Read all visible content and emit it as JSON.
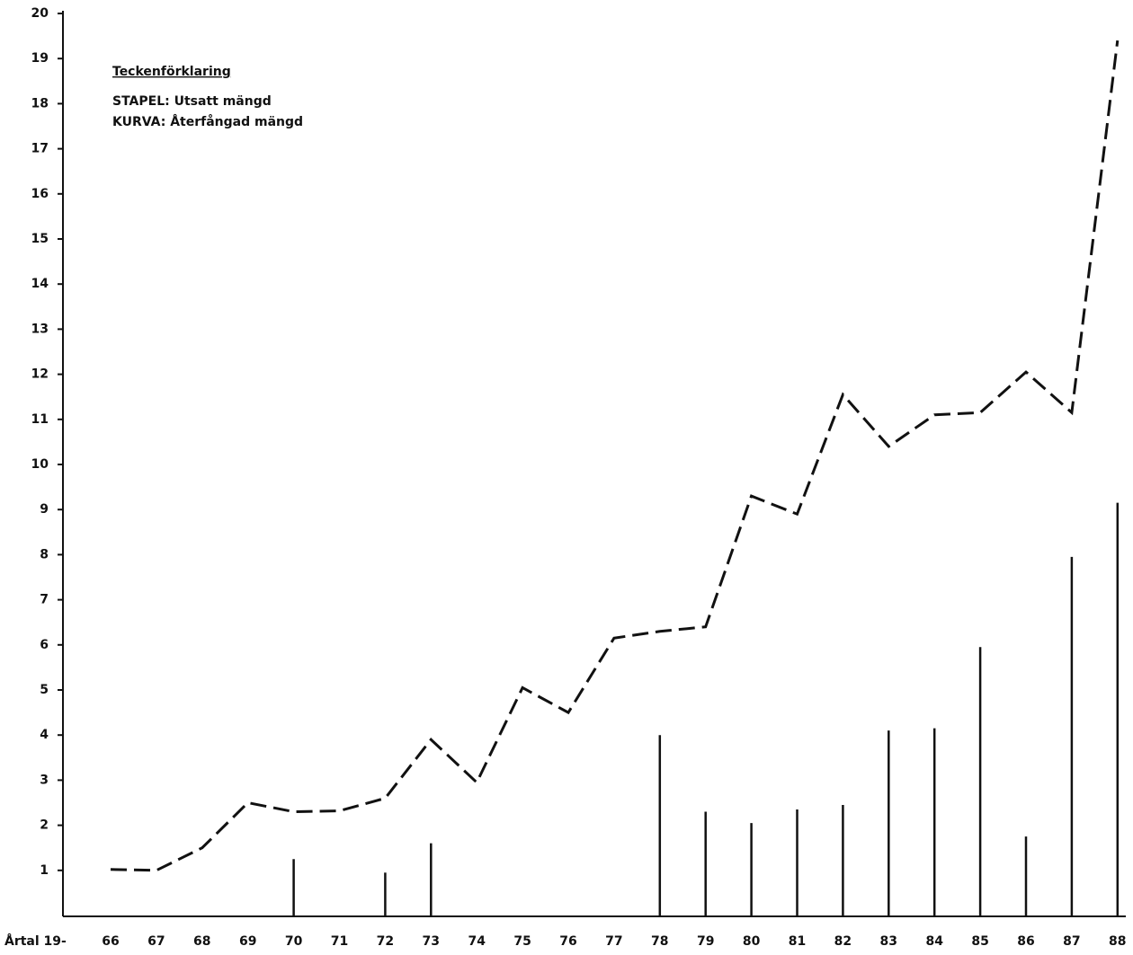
{
  "chart_data": {
    "type": "combo",
    "x_label": "Årtal 19-",
    "legend_title": "Teckenförklaring",
    "categories": [
      "66",
      "67",
      "68",
      "69",
      "70",
      "71",
      "72",
      "73",
      "74",
      "75",
      "76",
      "77",
      "78",
      "79",
      "80",
      "81",
      "82",
      "83",
      "84",
      "85",
      "86",
      "87",
      "88"
    ],
    "series": [
      {
        "name": "STAPEL: Utsatt mängd",
        "type": "bar",
        "color": "#111111",
        "values": [
          null,
          null,
          null,
          null,
          1.25,
          null,
          0.95,
          1.6,
          null,
          null,
          null,
          null,
          4.0,
          2.3,
          2.05,
          2.35,
          2.45,
          4.1,
          4.15,
          5.95,
          1.75,
          7.95,
          9.15
        ]
      },
      {
        "name": "KURVA: Återfångad mängd",
        "type": "line",
        "color": "#111111",
        "values": [
          1.02,
          1.0,
          1.5,
          2.5,
          2.3,
          2.32,
          2.6,
          3.9,
          2.95,
          5.05,
          4.5,
          6.15,
          6.3,
          6.4,
          9.3,
          8.9,
          11.55,
          10.4,
          11.1,
          11.15,
          12.05,
          11.15,
          19.4
        ]
      }
    ],
    "ylim": [
      0,
      20
    ],
    "yticks": [
      1,
      2,
      3,
      4,
      5,
      6,
      7,
      8,
      9,
      10,
      11,
      12,
      13,
      14,
      15,
      16,
      17,
      18,
      19,
      20
    ]
  }
}
